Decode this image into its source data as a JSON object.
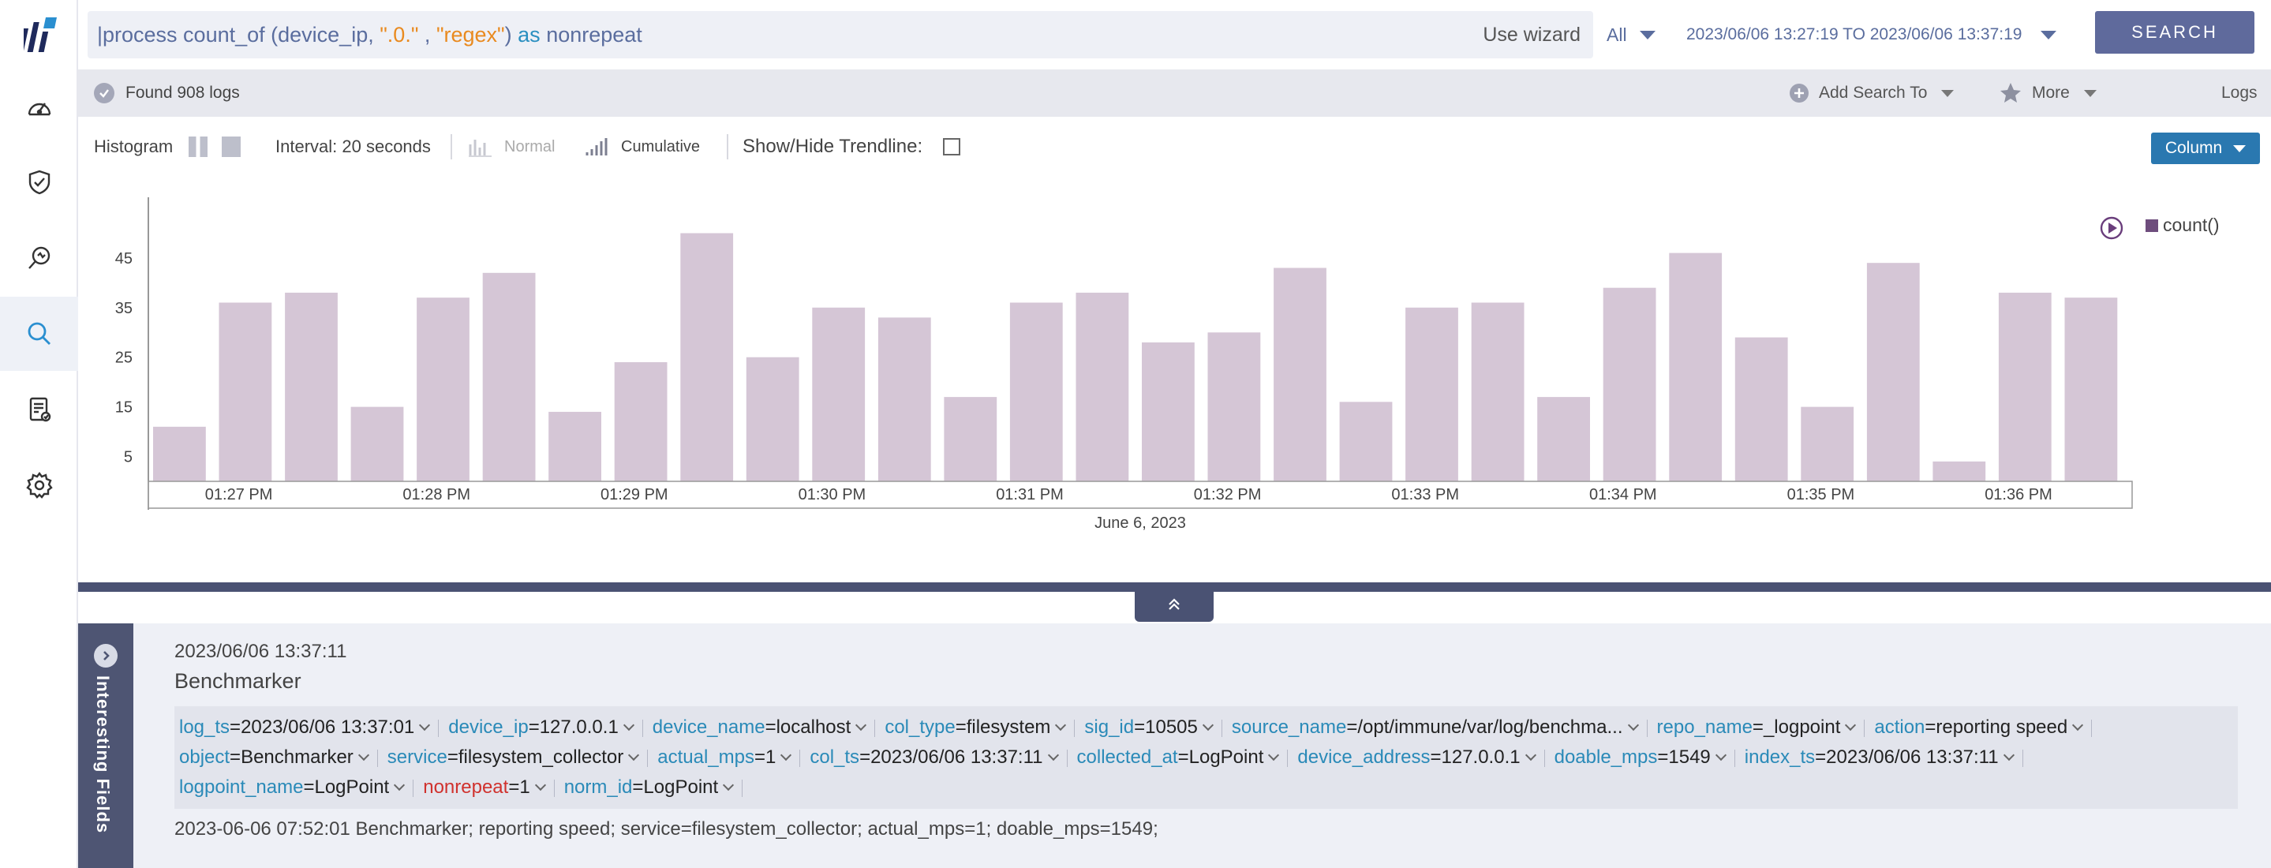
{
  "sidebar": {
    "items": [
      {
        "name": "dashboard-icon"
      },
      {
        "name": "shield-check-icon"
      },
      {
        "name": "investigate-icon"
      },
      {
        "name": "search-icon",
        "active": true
      },
      {
        "name": "report-icon"
      },
      {
        "name": "settings-icon"
      }
    ]
  },
  "search": {
    "query_pre": "|process count_of (device_ip, ",
    "query_str1": "\".0.\"",
    "query_comma": " , ",
    "query_str2": "\"regex\"",
    "query_close": ") ",
    "query_as": "as",
    "query_alias": " nonrepeat",
    "wizard_label": "Use wizard",
    "scope": "All",
    "time_range": "2023/06/06 13:27:19 TO 2023/06/06 13:37:19",
    "search_label": "SEARCH"
  },
  "subbar": {
    "found": "Found 908 logs",
    "add_search_to": "Add Search To",
    "more": "More",
    "logs": "Logs"
  },
  "histbar": {
    "histogram": "Histogram",
    "interval": "Interval: 20 seconds",
    "normal": "Normal",
    "cumulative": "Cumulative",
    "trendline": "Show/Hide Trendline:",
    "column": "Column"
  },
  "chart_data": {
    "type": "bar",
    "x_date_label": "June 6, 2023",
    "x_ticks": [
      "01:27 PM",
      "01:28 PM",
      "01:29 PM",
      "01:30 PM",
      "01:31 PM",
      "01:32 PM",
      "01:33 PM",
      "01:34 PM",
      "01:35 PM",
      "01:36 PM"
    ],
    "y_ticks": [
      5,
      15,
      25,
      35,
      45
    ],
    "ylim": [
      0,
      55
    ],
    "series": [
      {
        "name": "count()",
        "color": "#d5c6d6"
      }
    ],
    "values": [
      11,
      36,
      38,
      15,
      37,
      42,
      14,
      24,
      50,
      25,
      35,
      33,
      17,
      36,
      38,
      28,
      30,
      43,
      16,
      35,
      36,
      17,
      39,
      46,
      29,
      15,
      44,
      4,
      38,
      37
    ],
    "legend": "top-right"
  },
  "logs": {
    "interesting_label": "Interesting Fields",
    "entries": [
      {
        "time": "2023/06/06 13:37:11",
        "source": "Benchmarker",
        "raw": "2023-06-06 07:52:01 Benchmarker; reporting speed; service=filesystem_collector; actual_mps=1; doable_mps=1549;",
        "fields": [
          {
            "k": "log_ts",
            "v": "2023/06/06 13:37:01"
          },
          {
            "k": "device_ip",
            "v": "127.0.0.1"
          },
          {
            "k": "device_name",
            "v": "localhost"
          },
          {
            "k": "col_type",
            "v": "filesystem"
          },
          {
            "k": "sig_id",
            "v": "10505"
          },
          {
            "k": "source_name",
            "v": "/opt/immune/var/log/benchma..."
          },
          {
            "k": "repo_name",
            "v": "_logpoint"
          },
          {
            "k": "action",
            "v": "reporting speed"
          },
          {
            "k": "object",
            "v": "Benchmarker"
          },
          {
            "k": "service",
            "v": "filesystem_collector"
          },
          {
            "k": "actual_mps",
            "v": "1"
          },
          {
            "k": "col_ts",
            "v": "2023/06/06 13:37:11"
          },
          {
            "k": "collected_at",
            "v": "LogPoint"
          },
          {
            "k": "device_address",
            "v": "127.0.0.1"
          },
          {
            "k": "doable_mps",
            "v": "1549"
          },
          {
            "k": "index_ts",
            "v": "2023/06/06 13:37:11"
          },
          {
            "k": "logpoint_name",
            "v": "LogPoint"
          },
          {
            "k": "nonrepeat",
            "v": "1",
            "highlight": true
          },
          {
            "k": "norm_id",
            "v": "LogPoint"
          }
        ]
      }
    ]
  }
}
